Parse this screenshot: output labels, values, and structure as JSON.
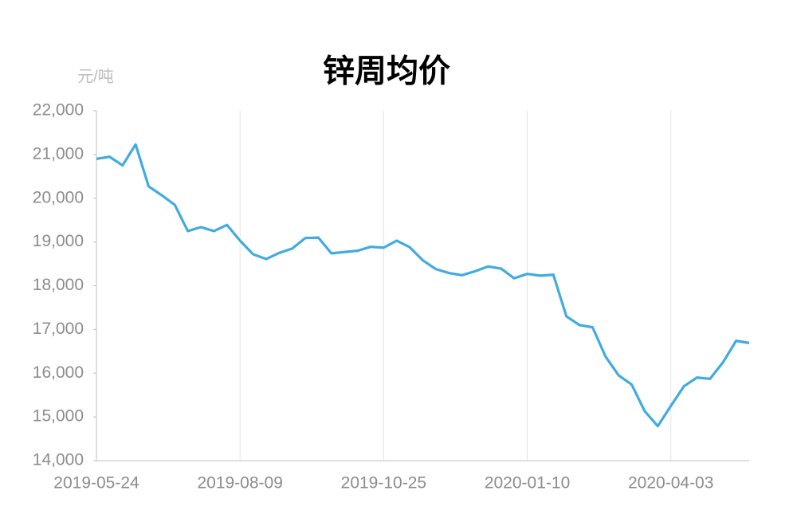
{
  "chart_data": {
    "type": "line",
    "title": "锌周均价",
    "y_axis_label": "元/吨",
    "categories": [
      "2019-05-24",
      null,
      null,
      null,
      null,
      null,
      null,
      null,
      null,
      null,
      null,
      "2019-08-09",
      null,
      null,
      null,
      null,
      null,
      null,
      null,
      null,
      null,
      null,
      "2019-10-25",
      null,
      null,
      null,
      null,
      null,
      null,
      null,
      null,
      null,
      null,
      "2020-01-10",
      null,
      null,
      null,
      null,
      null,
      null,
      null,
      null,
      null,
      null,
      "2020-04-03",
      null,
      null,
      null,
      null,
      null,
      null
    ],
    "series": [
      {
        "name": "锌周均价",
        "color": "#41abe0",
        "values": [
          20900,
          20950,
          20750,
          21230,
          20270,
          20070,
          19850,
          19250,
          19340,
          19250,
          19390,
          19030,
          18720,
          18610,
          18750,
          18850,
          19090,
          19100,
          18740,
          18770,
          18800,
          18890,
          18870,
          19030,
          18880,
          18580,
          18380,
          18290,
          18240,
          18330,
          18440,
          18390,
          18170,
          18270,
          18230,
          18250,
          17300,
          17100,
          17050,
          16380,
          15950,
          15740,
          15130,
          14790,
          15250,
          15700,
          15900,
          15870,
          16250,
          16740,
          16690
        ]
      }
    ],
    "ylim": [
      14000,
      22000
    ],
    "yticks": [
      {
        "value": 14000,
        "label": "14,000"
      },
      {
        "value": 15000,
        "label": "15,000"
      },
      {
        "value": 16000,
        "label": "16,000"
      },
      {
        "value": 17000,
        "label": "17,000"
      },
      {
        "value": 18000,
        "label": "18,000"
      },
      {
        "value": 19000,
        "label": "19,000"
      },
      {
        "value": 20000,
        "label": "20,000"
      },
      {
        "value": 21000,
        "label": "21,000"
      },
      {
        "value": 22000,
        "label": "22,000"
      }
    ],
    "grid": true
  }
}
